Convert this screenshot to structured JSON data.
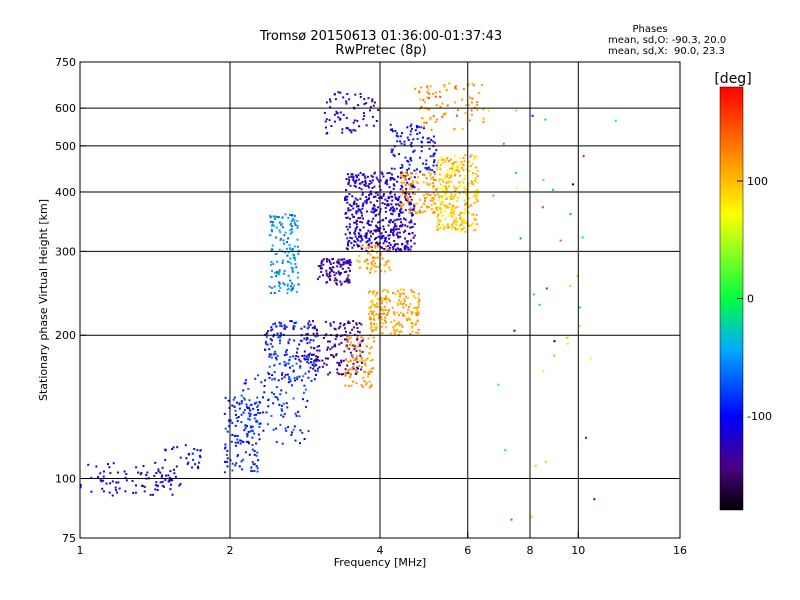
{
  "chart_data": {
    "type": "scatter",
    "title": "Tromsø 20150613 01:36:00-01:37:43",
    "subtitle": "RwPretec (8p)",
    "xlabel": "Frequency [MHz]",
    "ylabel": "Stationary phase Virtual Height [km]",
    "x_scale": "log",
    "y_scale": "log",
    "xlim": [
      1,
      16
    ],
    "ylim": [
      75,
      750
    ],
    "x_ticks": [
      1,
      2,
      4,
      6,
      8,
      10,
      16
    ],
    "x_grid": [
      2,
      4,
      6,
      8,
      10
    ],
    "y_ticks": [
      75,
      100,
      200,
      300,
      400,
      500,
      600,
      750
    ],
    "y_grid": [
      100,
      200,
      300,
      400,
      500,
      600
    ],
    "grid": true,
    "phase_info": {
      "title": "Phases",
      "line_o": "mean, sd,O: -90.3, 20.0",
      "line_x": "mean, sd,X:  90.0, 23.3"
    },
    "colorbar": {
      "label": "[deg]",
      "range": [
        -180,
        180
      ],
      "ticks": [
        -100,
        0,
        100
      ],
      "colormap": "rainbow"
    },
    "point_groups": [
      {
        "name": "lowE",
        "x": [
          1.0,
          1.55
        ],
        "y": [
          92,
          108
        ],
        "phase": [
          -140,
          -95
        ],
        "n": 80
      },
      {
        "name": "lowE2",
        "x": [
          1.45,
          1.75
        ],
        "y": [
          96,
          120
        ],
        "phase": [
          -120,
          -90
        ],
        "n": 40
      },
      {
        "name": "steep",
        "x": [
          1.95,
          2.3
        ],
        "y": [
          103,
          150
        ],
        "phase": [
          -110,
          -70
        ],
        "n": 120
      },
      {
        "name": "ramp",
        "x": [
          2.1,
          2.9
        ],
        "y": [
          118,
          165
        ],
        "phase": [
          -120,
          -60
        ],
        "n": 100
      },
      {
        "name": "F1a",
        "x": [
          2.35,
          3.0
        ],
        "y": [
          160,
          215
        ],
        "phase": [
          -130,
          -60
        ],
        "n": 180
      },
      {
        "name": "F1b",
        "x": [
          2.9,
          3.7
        ],
        "y": [
          165,
          215
        ],
        "phase": [
          -150,
          -110
        ],
        "n": 150
      },
      {
        "name": "stack",
        "x": [
          2.4,
          2.75
        ],
        "y": [
          245,
          360
        ],
        "phase": [
          -75,
          -30
        ],
        "n": 150
      },
      {
        "name": "mid",
        "x": [
          3.0,
          3.5
        ],
        "y": [
          255,
          290
        ],
        "phase": [
          -150,
          -120
        ],
        "n": 100
      },
      {
        "name": "mainF",
        "x": [
          3.4,
          4.7
        ],
        "y": [
          300,
          440
        ],
        "phase": [
          -140,
          -100
        ],
        "n": 500
      },
      {
        "name": "upperF",
        "x": [
          3.1,
          4.0
        ],
        "y": [
          530,
          650
        ],
        "phase": [
          -140,
          -90
        ],
        "n": 70
      },
      {
        "name": "upperF2",
        "x": [
          4.2,
          5.2
        ],
        "y": [
          440,
          560
        ],
        "phase": [
          -130,
          -80
        ],
        "n": 100
      },
      {
        "name": "X1",
        "x": [
          3.4,
          3.9
        ],
        "y": [
          155,
          200
        ],
        "phase": [
          100,
          130
        ],
        "n": 90
      },
      {
        "name": "X2",
        "x": [
          3.8,
          4.8
        ],
        "y": [
          200,
          250
        ],
        "phase": [
          95,
          125
        ],
        "n": 200
      },
      {
        "name": "X3",
        "x": [
          3.6,
          4.2
        ],
        "y": [
          270,
          310
        ],
        "phase": [
          95,
          130
        ],
        "n": 60
      },
      {
        "name": "X4",
        "x": [
          4.4,
          5.2
        ],
        "y": [
          360,
          440
        ],
        "phase": [
          95,
          130
        ],
        "n": 120
      },
      {
        "name": "X5",
        "x": [
          5.2,
          6.3
        ],
        "y": [
          330,
          480
        ],
        "phase": [
          70,
          120
        ],
        "n": 300
      },
      {
        "name": "X6",
        "x": [
          4.7,
          6.5
        ],
        "y": [
          540,
          680
        ],
        "phase": [
          90,
          150
        ],
        "n": 80
      },
      {
        "name": "sparse",
        "x": [
          6.5,
          12
        ],
        "y": [
          80,
          650
        ],
        "phase": [
          -180,
          180
        ],
        "n": 40
      }
    ]
  }
}
